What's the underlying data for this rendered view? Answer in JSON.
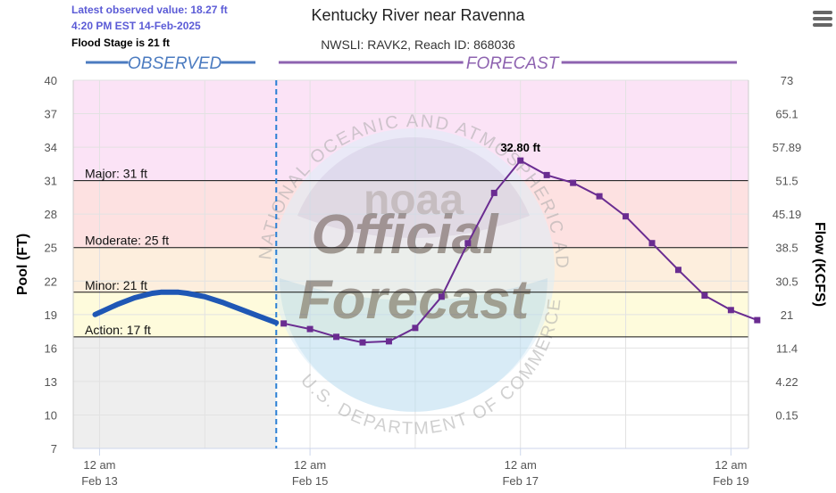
{
  "header": {
    "latest_observed": "Latest observed value: 18.27 ft",
    "latest_time": "4:20 PM EST 14-Feb-2025",
    "flood_stage": "Flood Stage is 21 ft",
    "title": "Kentucky River near Ravenna",
    "subtitle": "NWSLI: RAVK2, Reach ID: 868036",
    "menu_icon": "hamburger-menu-icon"
  },
  "watermark": {
    "ring_text_top": "NATIONAL OCEANIC AND ATMOSPHERIC ADMINISTRATION",
    "ring_text_bottom": "U.S. DEPARTMENT OF COMMERCE",
    "line1": "Official",
    "line2": "Forecast",
    "logo_text": "noaa"
  },
  "chart_data": {
    "type": "line",
    "title": "Kentucky River near Ravenna",
    "subtitle": "NWSLI: RAVK2, Reach ID: 868036",
    "ylabel": "Pool (FT)",
    "y2label": "Flow (KCFS)",
    "ylim": [
      7,
      40
    ],
    "yticks": [
      "40",
      "37",
      "34",
      "31",
      "28",
      "25",
      "22",
      "19",
      "16",
      "13",
      "10",
      "7"
    ],
    "ytick_values": [
      40,
      37,
      34,
      31,
      28,
      25,
      22,
      19,
      16,
      13,
      10,
      7
    ],
    "y2ticks": [
      "73",
      "65.1",
      "57.89",
      "51.5",
      "45.19",
      "38.5",
      "30.5",
      "21",
      "11.4",
      "4.22",
      "0.15",
      ""
    ],
    "xlim": [
      -6,
      148
    ],
    "x_unit": "hours after 12 am Feb 13, 2025",
    "xticks": [
      {
        "x": 0,
        "label1": "12 am",
        "label2": "Feb 13"
      },
      {
        "x": 48,
        "label1": "12 am",
        "label2": "Feb 15"
      },
      {
        "x": 96,
        "label1": "12 am",
        "label2": "Feb 17"
      },
      {
        "x": 144,
        "label1": "12 am",
        "label2": "Feb 19"
      }
    ],
    "minor_xgrid": [
      24,
      72,
      120
    ],
    "now_x": 40.3,
    "section_labels": {
      "observed": "OBSERVED",
      "forecast": "FORECAST"
    },
    "colors": {
      "observed": "#1f57b5",
      "forecast": "#6a2c91",
      "now_line": "#2a7fd4",
      "band_major": "#fbe3f6",
      "band_moderate": "#fde1e1",
      "band_minor": "#fdeedd",
      "band_action": "#fefbdc",
      "band_low": "#eeeeee",
      "section_observed": "#4b7bc0",
      "section_forecast": "#8e63b0"
    },
    "bands": [
      {
        "name": "major",
        "from": 31,
        "to": 40
      },
      {
        "name": "moderate",
        "from": 25,
        "to": 31
      },
      {
        "name": "minor",
        "from": 21,
        "to": 25
      },
      {
        "name": "action",
        "from": 17,
        "to": 21
      },
      {
        "name": "low",
        "from": 7,
        "to": 17
      }
    ],
    "thresholds": [
      {
        "label": "Major: 31 ft",
        "value": 31
      },
      {
        "label": "Moderate: 25 ft",
        "value": 25
      },
      {
        "label": "Minor: 21 ft",
        "value": 21
      },
      {
        "label": "Action: 17 ft",
        "value": 17
      }
    ],
    "series": [
      {
        "name": "Observed",
        "x": [
          -1,
          4,
          8,
          12,
          14,
          16,
          18,
          20,
          24,
          28,
          32,
          36,
          40.3
        ],
        "y": [
          19.0,
          19.9,
          20.5,
          20.9,
          21.0,
          21.0,
          21.0,
          20.9,
          20.6,
          20.1,
          19.5,
          18.9,
          18.27
        ]
      },
      {
        "name": "Forecast",
        "x": [
          42,
          48,
          54,
          60,
          66,
          72,
          78,
          84,
          90,
          96,
          102,
          108,
          114,
          120,
          126,
          132,
          138,
          144,
          150
        ],
        "y": [
          18.2,
          17.7,
          17.0,
          16.5,
          16.6,
          17.8,
          20.6,
          25.4,
          29.9,
          32.8,
          31.5,
          30.8,
          29.6,
          27.8,
          25.4,
          23.0,
          20.7,
          19.4,
          18.5
        ]
      }
    ],
    "peak_label": {
      "text": "32.80 ft",
      "x": 96,
      "y": 32.8
    }
  }
}
